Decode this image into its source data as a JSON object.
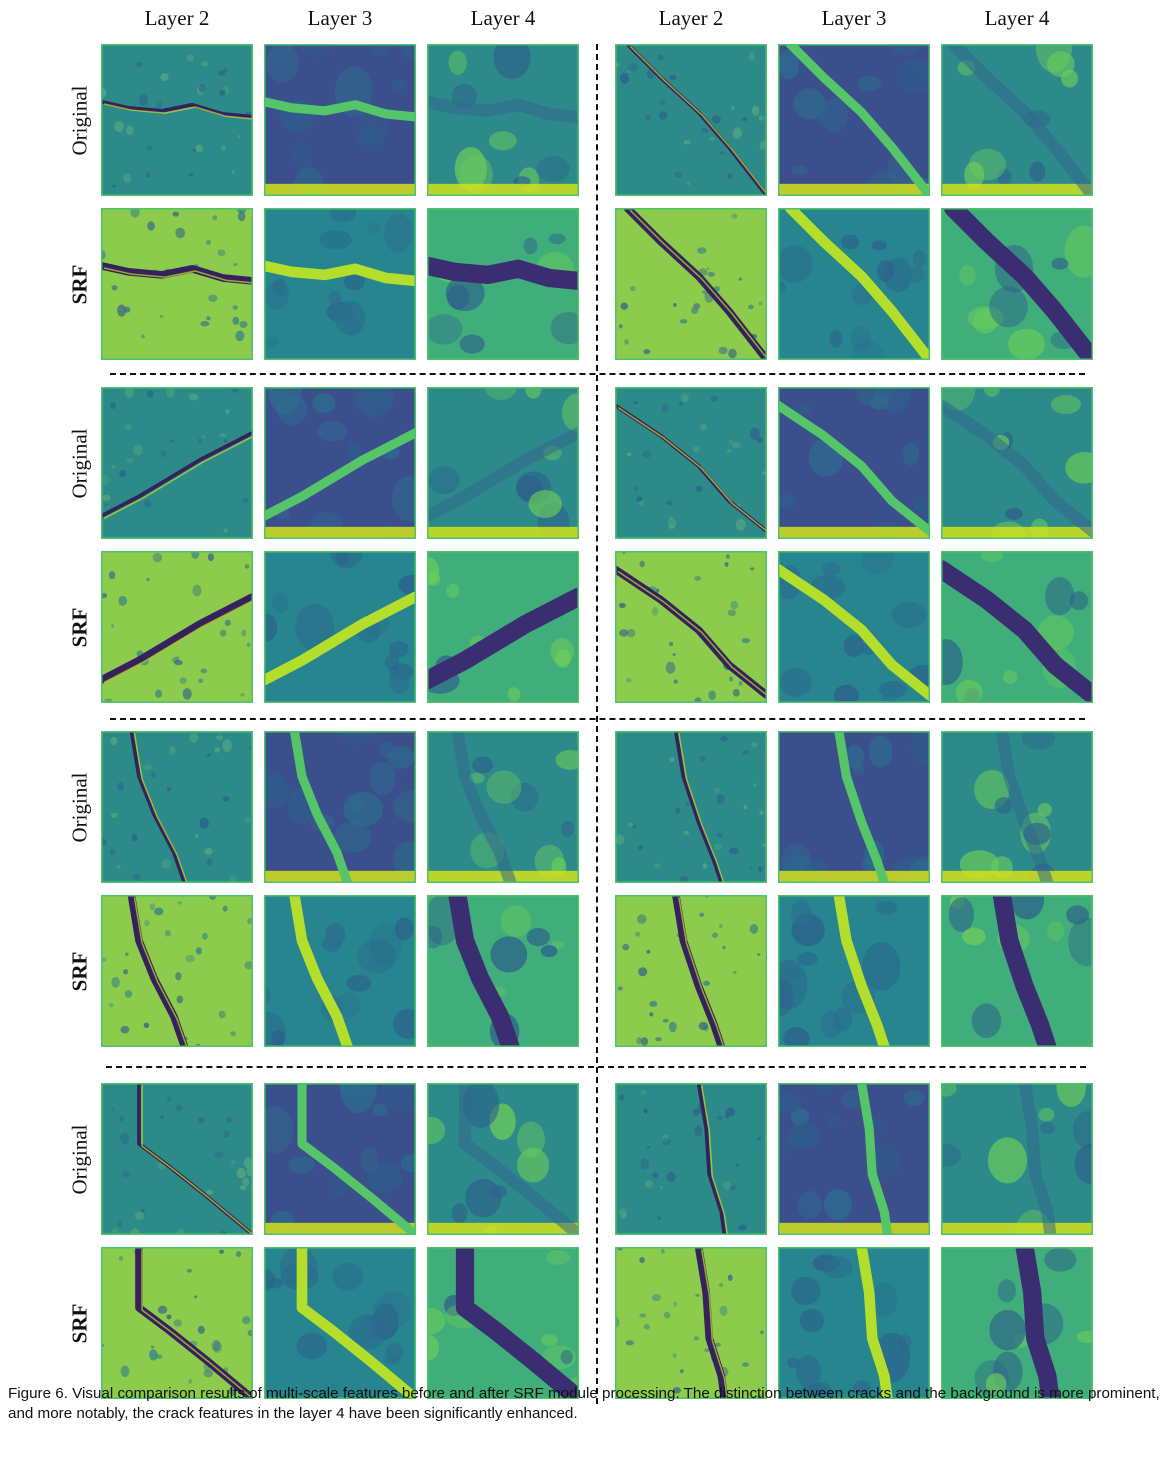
{
  "figure": {
    "column_headers": [
      "Layer 2",
      "Layer 3",
      "Layer 4",
      "Layer 2",
      "Layer 3",
      "Layer 4"
    ],
    "row_labels": {
      "original": "Original",
      "srf": "SRF"
    },
    "caption": "Figure 6. Visual comparison results of multi-scale features before and after SRF module processing. The distinction between cracks and the background is more prominent, and more notably, the crack features in the layer 4 have been significantly enhanced."
  },
  "colormap": {
    "name": "viridis",
    "background_original": "#2a8a8a",
    "background_srf": "#8cc94e",
    "crack_dark": "#3b2a6b",
    "highlight": "#e8e620"
  }
}
